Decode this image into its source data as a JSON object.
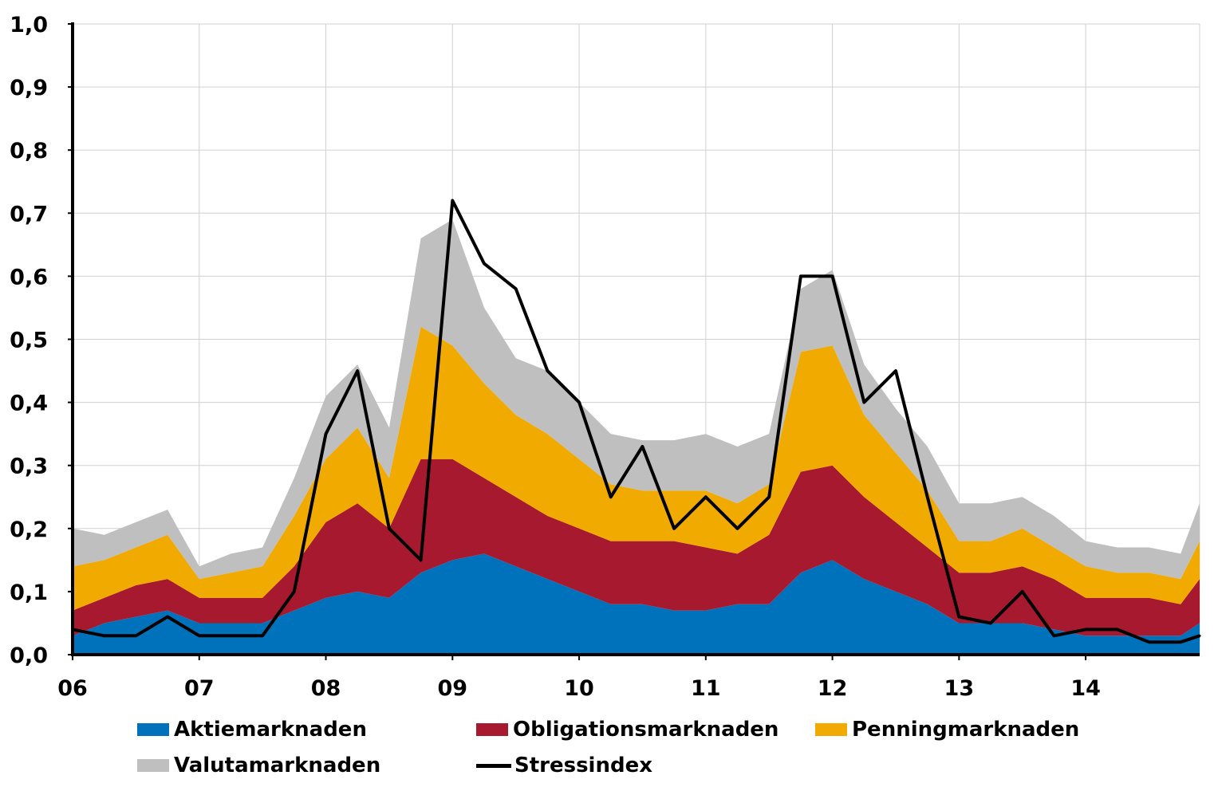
{
  "chart_data": {
    "type": "area",
    "title": "",
    "xlabel": "",
    "ylabel": "",
    "ylim": [
      0,
      1.0
    ],
    "yticks": [
      "0,0",
      "0,1",
      "0,2",
      "0,3",
      "0,4",
      "0,5",
      "0,6",
      "0,7",
      "0,8",
      "0,9",
      "1,0"
    ],
    "xticks": [
      "06",
      "07",
      "08",
      "09",
      "10",
      "11",
      "12",
      "13",
      "14"
    ],
    "xlim": [
      2006.0,
      2014.9
    ],
    "grid": true,
    "legend_position": "bottom",
    "stacked": true,
    "x": [
      2006.0,
      2006.25,
      2006.5,
      2006.75,
      2007.0,
      2007.25,
      2007.5,
      2007.75,
      2008.0,
      2008.25,
      2008.5,
      2008.75,
      2009.0,
      2009.25,
      2009.5,
      2009.75,
      2010.0,
      2010.25,
      2010.5,
      2010.75,
      2011.0,
      2011.25,
      2011.5,
      2011.75,
      2012.0,
      2012.25,
      2012.5,
      2012.75,
      2013.0,
      2013.25,
      2013.5,
      2013.75,
      2014.0,
      2014.25,
      2014.5,
      2014.75,
      2014.9
    ],
    "series": [
      {
        "name": "Aktiemarknaden",
        "color": "#0072bc",
        "values": [
          0.03,
          0.05,
          0.06,
          0.07,
          0.05,
          0.05,
          0.05,
          0.07,
          0.09,
          0.1,
          0.09,
          0.13,
          0.15,
          0.16,
          0.14,
          0.12,
          0.1,
          0.08,
          0.08,
          0.07,
          0.07,
          0.08,
          0.08,
          0.13,
          0.15,
          0.12,
          0.1,
          0.08,
          0.05,
          0.05,
          0.05,
          0.04,
          0.03,
          0.03,
          0.03,
          0.03,
          0.05
        ]
      },
      {
        "name": "Obligationsmarknaden",
        "color": "#a6192e",
        "values": [
          0.04,
          0.04,
          0.05,
          0.05,
          0.04,
          0.04,
          0.04,
          0.07,
          0.12,
          0.14,
          0.11,
          0.18,
          0.16,
          0.12,
          0.11,
          0.1,
          0.1,
          0.1,
          0.1,
          0.11,
          0.1,
          0.08,
          0.11,
          0.16,
          0.15,
          0.13,
          0.11,
          0.09,
          0.08,
          0.08,
          0.09,
          0.08,
          0.06,
          0.06,
          0.06,
          0.05,
          0.07
        ]
      },
      {
        "name": "Penningmarknaden",
        "color": "#f0aa00",
        "values": [
          0.07,
          0.06,
          0.06,
          0.07,
          0.03,
          0.04,
          0.05,
          0.08,
          0.1,
          0.12,
          0.08,
          0.21,
          0.18,
          0.15,
          0.13,
          0.13,
          0.11,
          0.09,
          0.08,
          0.08,
          0.09,
          0.08,
          0.08,
          0.19,
          0.19,
          0.13,
          0.11,
          0.09,
          0.05,
          0.05,
          0.06,
          0.05,
          0.05,
          0.04,
          0.04,
          0.04,
          0.06
        ]
      },
      {
        "name": "Valutamarknaden",
        "color": "#bfbfbf",
        "values": [
          0.06,
          0.04,
          0.04,
          0.04,
          0.02,
          0.03,
          0.03,
          0.06,
          0.1,
          0.1,
          0.08,
          0.14,
          0.2,
          0.12,
          0.09,
          0.1,
          0.09,
          0.08,
          0.08,
          0.08,
          0.09,
          0.09,
          0.08,
          0.1,
          0.12,
          0.08,
          0.07,
          0.07,
          0.06,
          0.06,
          0.05,
          0.05,
          0.04,
          0.04,
          0.04,
          0.04,
          0.06
        ]
      },
      {
        "name": "Stressindex",
        "color": "#000000",
        "kind": "line",
        "values": [
          0.04,
          0.03,
          0.03,
          0.06,
          0.03,
          0.03,
          0.03,
          0.1,
          0.35,
          0.45,
          0.2,
          0.15,
          0.72,
          0.62,
          0.58,
          0.45,
          0.4,
          0.25,
          0.33,
          0.2,
          0.25,
          0.2,
          0.25,
          0.6,
          0.6,
          0.4,
          0.45,
          0.25,
          0.06,
          0.05,
          0.1,
          0.03,
          0.04,
          0.04,
          0.02,
          0.02,
          0.03
        ]
      }
    ]
  },
  "legend": {
    "items": [
      {
        "label": "Aktiemarknaden",
        "color": "#0072bc"
      },
      {
        "label": "Obligationsmarknaden",
        "color": "#a6192e"
      },
      {
        "label": "Penningmarknaden",
        "color": "#f0aa00"
      },
      {
        "label": "Valutamarknaden",
        "color": "#bfbfbf"
      },
      {
        "label": "Stressindex",
        "color": "#000000"
      }
    ]
  }
}
